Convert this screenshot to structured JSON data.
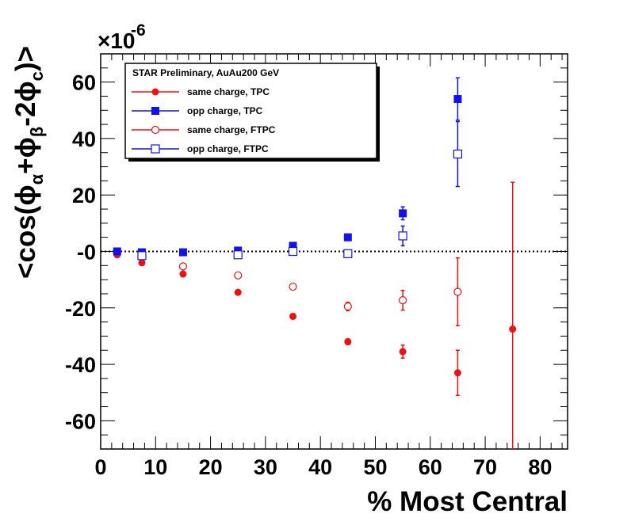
{
  "chart_data": {
    "type": "scatter",
    "title": "",
    "xlabel": "% Most Central",
    "ylabel_parts": {
      "prefix": "<cos(",
      "phi1": "ϕ",
      "sub_alpha": "α",
      "plus": "+",
      "phi2": "ϕ",
      "sub_beta": "β",
      "minus2": "-2",
      "phi3": "ϕ",
      "sub_c": "c",
      "suffix": ")>"
    },
    "y_exponent_base": "×10",
    "y_exponent_power": "-6",
    "xlim": [
      0,
      85
    ],
    "ylim": [
      -70,
      70
    ],
    "x_ticks": [
      0,
      10,
      20,
      30,
      40,
      50,
      60,
      70,
      80
    ],
    "x_tick_labels": [
      "0",
      "10",
      "20",
      "30",
      "40",
      "50",
      "60",
      "70",
      "80"
    ],
    "y_ticks": [
      -60,
      -40,
      -20,
      0,
      20,
      40,
      60
    ],
    "y_tick_labels": [
      "-60",
      "-40",
      "-20",
      "-0",
      "20",
      "40",
      "60"
    ],
    "reference_line_y": 0,
    "legend": {
      "title": "STAR Preliminary, AuAu200 GeV",
      "placement": "top-left"
    },
    "series": [
      {
        "name": "same charge, TPC",
        "color": "#ee1111",
        "marker": "filled-circle",
        "points": [
          {
            "x": 3,
            "y": -1.2,
            "err": 0.5
          },
          {
            "x": 7.5,
            "y": -4,
            "err": 0.6
          },
          {
            "x": 15,
            "y": -8,
            "err": 0.7
          },
          {
            "x": 25,
            "y": -14.5,
            "err": 0.8
          },
          {
            "x": 35,
            "y": -23,
            "err": 0.9
          },
          {
            "x": 45,
            "y": -32,
            "err": 1.0
          },
          {
            "x": 55,
            "y": -35.5,
            "err": 2.3
          },
          {
            "x": 65,
            "y": -43,
            "err": 8
          },
          {
            "x": 75,
            "y": -27.5,
            "err": 52
          }
        ]
      },
      {
        "name": "opp charge, TPC",
        "color": "#1111ee",
        "marker": "filled-square",
        "points": [
          {
            "x": 3,
            "y": 0,
            "err": 0.5
          },
          {
            "x": 7.5,
            "y": -0.3,
            "err": 0.5
          },
          {
            "x": 15,
            "y": -0.3,
            "err": 0.5
          },
          {
            "x": 25,
            "y": 0.3,
            "err": 0.6
          },
          {
            "x": 35,
            "y": 2,
            "err": 0.7
          },
          {
            "x": 45,
            "y": 5,
            "err": 0.9
          },
          {
            "x": 55,
            "y": 13.5,
            "err": 2.3
          },
          {
            "x": 65,
            "y": 54,
            "err": 7.5
          }
        ]
      },
      {
        "name": "same charge, FTPC",
        "color": "#ee1111",
        "marker": "open-circle",
        "points": [
          {
            "x": 7.5,
            "y": -2,
            "err": 0.8
          },
          {
            "x": 15,
            "y": -5.3,
            "err": 0.8
          },
          {
            "x": 25,
            "y": -8.5,
            "err": 0.9
          },
          {
            "x": 35,
            "y": -12.5,
            "err": 1.0
          },
          {
            "x": 45,
            "y": -19.5,
            "err": 1.5
          },
          {
            "x": 55,
            "y": -17.3,
            "err": 3.5
          },
          {
            "x": 65,
            "y": -14.3,
            "err": 12
          }
        ]
      },
      {
        "name": "opp charge, FTPC",
        "color": "#1111ee",
        "marker": "open-square",
        "points": [
          {
            "x": 7.5,
            "y": -1.5,
            "err": 0.8
          },
          {
            "x": 25,
            "y": -1.2,
            "err": 0.8
          },
          {
            "x": 35,
            "y": 0,
            "err": 0.9
          },
          {
            "x": 45,
            "y": -0.8,
            "err": 1.2
          },
          {
            "x": 55,
            "y": 5.5,
            "err": 3.5
          },
          {
            "x": 65,
            "y": 34.5,
            "err": 11.5
          }
        ]
      }
    ]
  }
}
